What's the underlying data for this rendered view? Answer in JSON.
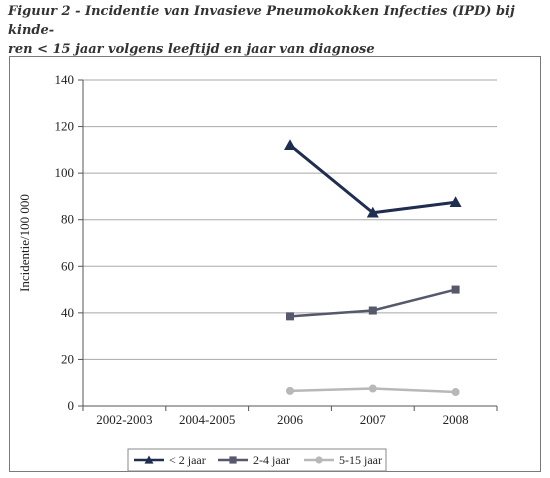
{
  "caption": {
    "line1": "Figuur 2  -  Incidentie van Invasieve Pneumokokken Infecties (IPD) bij kinde-",
    "line2": "ren < 15 jaar volgens leeftijd en jaar van diagnose"
  },
  "chart_data": {
    "type": "line",
    "categories": [
      "2002-2003",
      "2004-2005",
      "2006",
      "2007",
      "2008"
    ],
    "ylabel": "Incidentie/100 000",
    "xlabel": "",
    "ylim": [
      0,
      140
    ],
    "yticks": [
      0,
      20,
      40,
      60,
      80,
      100,
      120,
      140
    ],
    "grid": true,
    "legend_position": "bottom",
    "series": [
      {
        "name": "< 2 jaar",
        "values": [
          null,
          null,
          112,
          83,
          87.5
        ],
        "color": "#1f2d50",
        "marker": "triangle"
      },
      {
        "name": "2-4 jaar",
        "values": [
          null,
          null,
          38.5,
          41,
          50
        ],
        "color": "#55596b",
        "marker": "square"
      },
      {
        "name": "5-15 jaar",
        "values": [
          null,
          null,
          6.5,
          7.5,
          6
        ],
        "color": "#b8b8b8",
        "marker": "circle"
      }
    ]
  }
}
